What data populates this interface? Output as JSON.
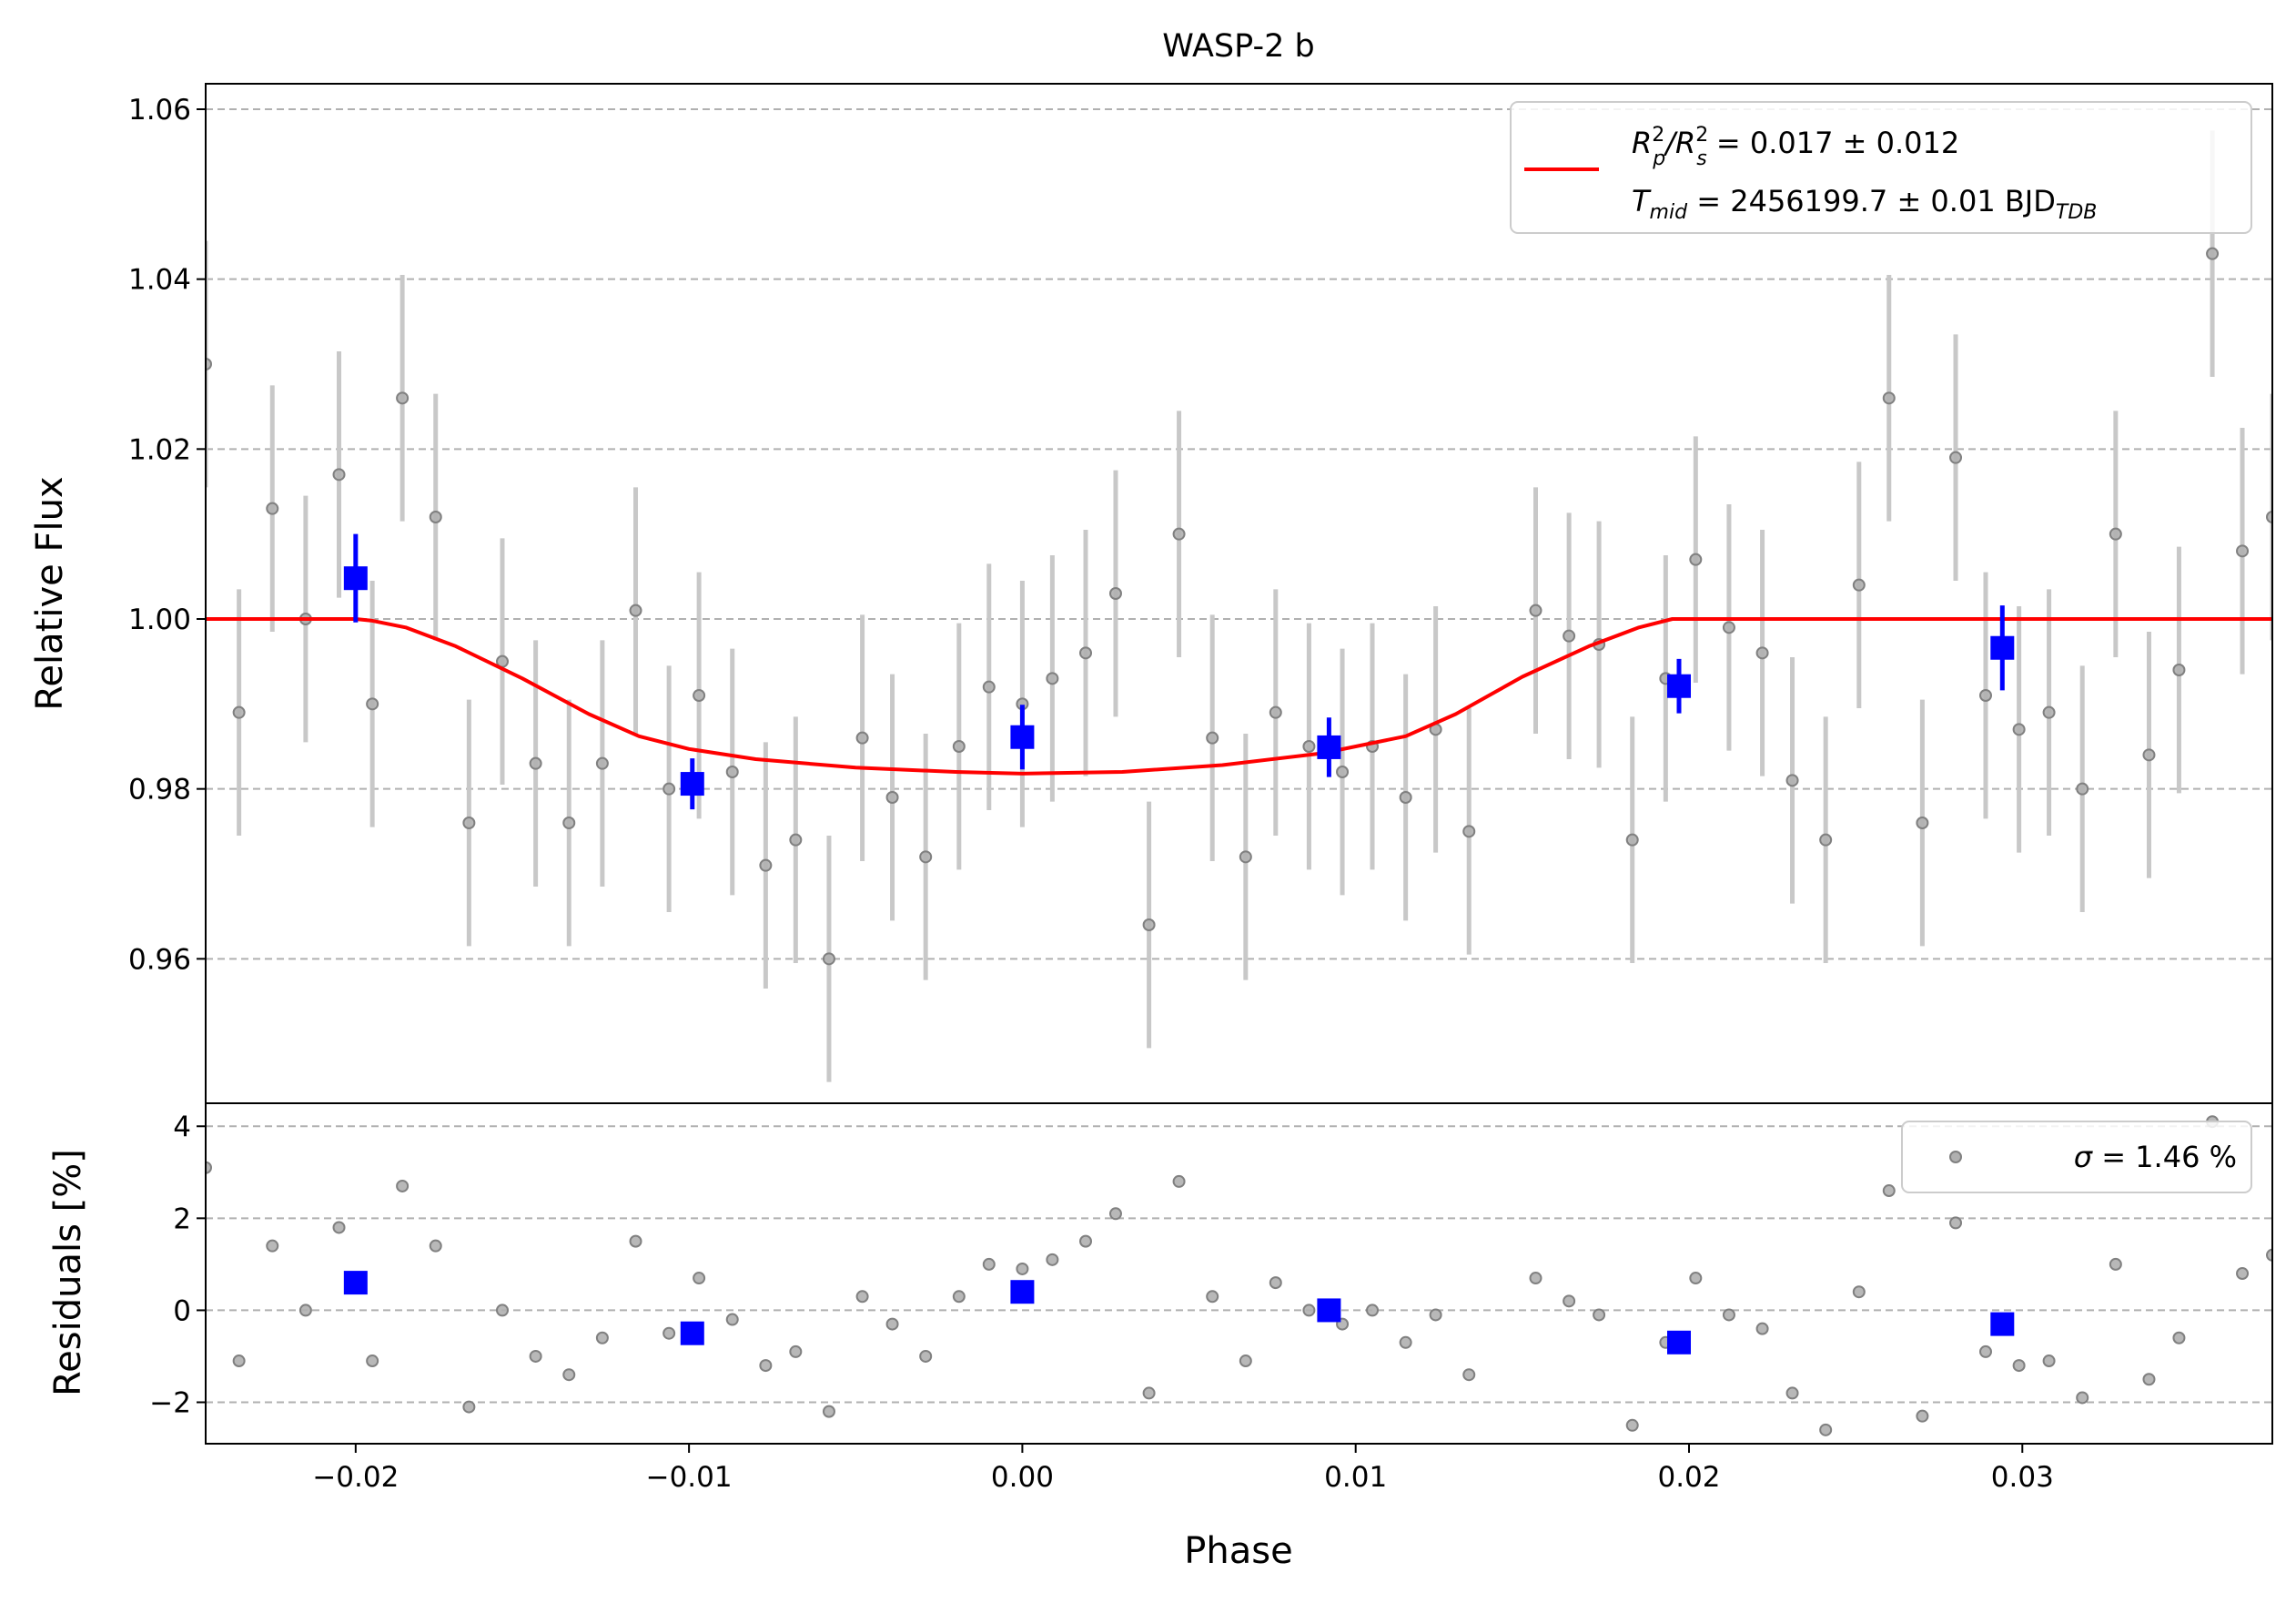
{
  "chart_data": [
    {
      "type": "scatter",
      "title": "WASP-2 b",
      "xlabel": "Phase",
      "ylabel": "Relative Flux",
      "xlim": [
        -0.0245,
        0.0375
      ],
      "ylim": [
        0.943,
        1.063
      ],
      "yticks": [
        "0.96",
        "0.98",
        "1.00",
        "1.02",
        "1.04",
        "1.06"
      ],
      "grid": "horizontal dashed",
      "legend_position": "top-right",
      "legend": {
        "line1": {
          "r_main": "R",
          "r_sup1": "2",
          "r_sub1": "p",
          "slash": "/R",
          "r_sup2": "2",
          "r_sub2": "s",
          "value": " = 0.017 ± 0.012"
        },
        "line2": {
          "t_main": "T",
          "t_sub": "mid",
          "value": " = 2456199.7 ± 0.01 BJD",
          "value_sub": "TDB"
        }
      },
      "colors": {
        "data": "#808080",
        "errorbar": "#c8c8c8",
        "binned": "#0000ff",
        "model": "#ff0000",
        "grid": "#b0b0b0"
      },
      "data_points": {
        "x": [
          -0.0245,
          -0.0235,
          -0.0225,
          -0.0215,
          -0.0205,
          -0.0195,
          -0.0186,
          -0.0176,
          -0.0166,
          -0.0156,
          -0.0146,
          -0.0136,
          -0.0126,
          -0.0116,
          -0.0106,
          -0.0097,
          -0.0087,
          -0.0077,
          -0.0068,
          -0.0058,
          -0.0048,
          -0.0039,
          -0.0029,
          -0.0019,
          -0.001,
          0.0,
          0.0009,
          0.0019,
          0.0028,
          0.0038,
          0.0047,
          0.0057,
          0.0067,
          0.0076,
          0.0086,
          0.0096,
          0.0105,
          0.0115,
          0.0124,
          0.0134,
          0.0154,
          0.0164,
          0.0173,
          0.0183,
          0.0193,
          0.0202,
          0.0212,
          0.0222,
          0.0231,
          0.0241,
          0.0251,
          0.026,
          0.027,
          0.028,
          0.0289,
          0.0299,
          0.0308,
          0.0318,
          0.0328,
          0.0338,
          0.0347,
          0.0357,
          0.0366,
          0.0375
        ],
        "y": [
          1.03,
          0.989,
          1.013,
          1.0,
          1.017,
          0.99,
          1.026,
          1.012,
          0.976,
          0.995,
          0.983,
          0.976,
          0.983,
          1.001,
          0.98,
          0.991,
          0.982,
          0.971,
          0.974,
          0.96,
          0.986,
          0.979,
          0.972,
          0.985,
          0.992,
          0.99,
          0.993,
          0.996,
          1.003,
          0.964,
          1.01,
          0.986,
          0.972,
          0.989,
          0.985,
          0.982,
          0.985,
          0.979,
          0.987,
          0.975,
          1.001,
          0.998,
          0.997,
          0.974,
          0.993,
          1.007,
          0.999,
          0.996,
          0.981,
          0.974,
          1.004,
          1.026,
          0.976,
          1.019,
          0.991,
          0.987,
          0.989,
          0.98,
          1.01,
          0.984,
          0.994,
          1.043,
          1.008,
          1.012
        ],
        "yerr": 0.0145
      },
      "binned": {
        "x": [
          -0.02,
          -0.0099,
          0.0,
          0.0092,
          0.0197,
          0.0294
        ],
        "y": [
          1.0048,
          0.9806,
          0.9861,
          0.9849,
          0.9921,
          0.9966
        ],
        "yerr": [
          0.0052,
          0.003,
          0.0038,
          0.0035,
          0.0032,
          0.005
        ]
      },
      "model": {
        "x": [
          -0.0245,
          -0.02,
          -0.0195,
          -0.0185,
          -0.017,
          -0.015,
          -0.013,
          -0.0115,
          -0.01,
          -0.008,
          -0.005,
          -0.002,
          0.0,
          0.003,
          0.006,
          0.009,
          0.0115,
          0.013,
          0.015,
          0.017,
          0.0185,
          0.0195,
          0.0375
        ],
        "y": [
          1.0,
          1.0,
          0.9998,
          0.999,
          0.9968,
          0.993,
          0.9888,
          0.9862,
          0.9847,
          0.9835,
          0.9825,
          0.982,
          0.9818,
          0.982,
          0.9828,
          0.9842,
          0.9862,
          0.9888,
          0.9932,
          0.9968,
          0.999,
          1.0,
          1.0
        ]
      }
    },
    {
      "type": "scatter",
      "xlabel": "Phase",
      "ylabel": "Residuals [%]",
      "xlim": [
        -0.0245,
        0.0375
      ],
      "ylim": [
        -2.9,
        4.5
      ],
      "xticks": [
        "−0.02",
        "−0.01",
        "0.00",
        "0.01",
        "0.02",
        "0.03"
      ],
      "xtick_values": [
        -0.02,
        -0.01,
        0.0,
        0.01,
        0.02,
        0.03
      ],
      "yticks": [
        "−2",
        "0",
        "2",
        "4"
      ],
      "ytick_values": [
        -2,
        0,
        2,
        4
      ],
      "grid": "horizontal dashed",
      "legend_position": "top-right",
      "legend": {
        "sigma": "σ",
        "value": " = 1.46 %"
      },
      "residuals": {
        "x": [
          -0.0245,
          -0.0235,
          -0.0225,
          -0.0215,
          -0.0205,
          -0.0195,
          -0.0186,
          -0.0176,
          -0.0166,
          -0.0156,
          -0.0146,
          -0.0136,
          -0.0126,
          -0.0116,
          -0.0106,
          -0.0097,
          -0.0087,
          -0.0077,
          -0.0068,
          -0.0058,
          -0.0048,
          -0.0039,
          -0.0029,
          -0.0019,
          -0.001,
          0.0,
          0.0009,
          0.0019,
          0.0028,
          0.0038,
          0.0047,
          0.0057,
          0.0067,
          0.0076,
          0.0086,
          0.0096,
          0.0105,
          0.0115,
          0.0124,
          0.0134,
          0.0154,
          0.0164,
          0.0173,
          0.0183,
          0.0193,
          0.0202,
          0.0212,
          0.0222,
          0.0231,
          0.0241,
          0.0251,
          0.026,
          0.027,
          0.028,
          0.0289,
          0.0299,
          0.0308,
          0.0318,
          0.0328,
          0.0338,
          0.0347,
          0.0357,
          0.0366,
          0.0375
        ],
        "y": [
          3.1,
          -1.1,
          1.4,
          0.0,
          1.8,
          -1.1,
          2.7,
          1.4,
          -2.1,
          0.0,
          -1.0,
          -1.4,
          -0.6,
          1.5,
          -0.5,
          0.7,
          -0.2,
          -1.2,
          -0.9,
          -2.2,
          0.3,
          -0.3,
          -1.0,
          0.3,
          1.0,
          0.9,
          1.1,
          1.5,
          2.1,
          -1.8,
          2.8,
          0.3,
          -1.1,
          0.6,
          0.0,
          -0.3,
          0.0,
          -0.7,
          -0.1,
          -1.4,
          0.7,
          0.2,
          -0.1,
          -2.5,
          -0.7,
          0.7,
          -0.1,
          -0.4,
          -1.8,
          -2.6,
          0.4,
          2.6,
          -2.3,
          1.9,
          -0.9,
          -1.2,
          -1.1,
          -1.9,
          1.0,
          -1.5,
          -0.6,
          4.1,
          0.8,
          1.2
        ]
      },
      "binned": {
        "x": [
          -0.02,
          -0.0099,
          0.0,
          0.0092,
          0.0197,
          0.0294
        ],
        "y": [
          0.6,
          -0.5,
          0.4,
          0.0,
          -0.7,
          -0.3
        ]
      }
    }
  ]
}
